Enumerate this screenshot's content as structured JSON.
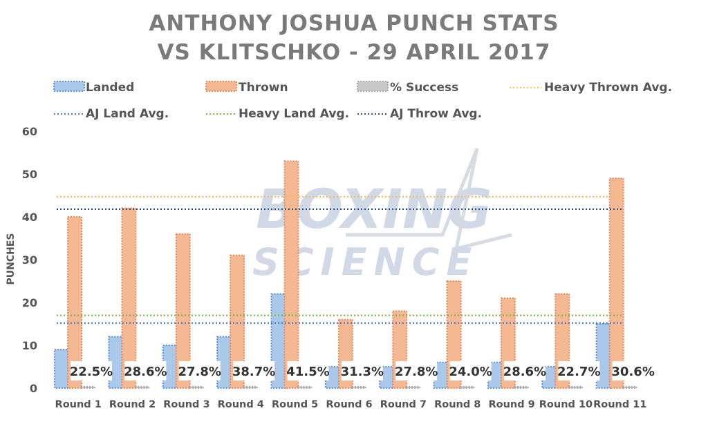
{
  "chart_data": {
    "type": "bar",
    "title_lines": [
      "ANTHONY JOSHUA PUNCH STATS",
      "VS KLITSCHKO - 29 APRIL 2017"
    ],
    "ylabel": "PUNCHES",
    "ylim": [
      0,
      60
    ],
    "yticks": [
      "0",
      "10",
      "20",
      "30",
      "40",
      "50",
      "60"
    ],
    "grid": false,
    "legend_position": "top",
    "categories": [
      "Round 1",
      "Round 2",
      "Round 3",
      "Round 4",
      "Round 5",
      "Round 6",
      "Round 7",
      "Round 8",
      "Round 9",
      "Round 10",
      "Round 11"
    ],
    "series": [
      {
        "name": "Landed",
        "kind": "bar",
        "color": "#a9c8ea",
        "border": "#5b8fd0",
        "values": [
          9,
          12,
          10,
          12,
          22,
          5,
          5,
          6,
          6,
          5,
          15
        ]
      },
      {
        "name": "Thrown",
        "kind": "bar",
        "color": "#f4b893",
        "border": "#e8875a",
        "values": [
          40,
          42,
          36,
          31,
          53,
          16,
          18,
          25,
          21,
          22,
          49
        ]
      },
      {
        "name": "% Success",
        "kind": "bar",
        "color": "#c8c8c8",
        "border": "#a8a8a8",
        "values": [
          0.225,
          0.286,
          0.278,
          0.387,
          0.415,
          0.313,
          0.278,
          0.24,
          0.286,
          0.227,
          0.306
        ],
        "labels": [
          "22.5%",
          "28.6%",
          "27.8%",
          "38.7%",
          "41.5%",
          "31.3%",
          "27.8%",
          "24.0%",
          "28.6%",
          "22.7%",
          "30.6%"
        ]
      }
    ],
    "reference_lines": [
      {
        "name": "Heavy Thrown Avg.",
        "value": 44.7,
        "color": "#f2c14e"
      },
      {
        "name": "AJ Land Avg.",
        "value": 15.2,
        "color": "#4a78c2"
      },
      {
        "name": "Heavy Land Avg.",
        "value": 17,
        "color": "#7cb342"
      },
      {
        "name": "AJ Throw Avg.",
        "value": 41.8,
        "color": "#2f4f7f"
      }
    ]
  },
  "watermark": {
    "line1": "BOXING",
    "line2": "SCIENCE"
  }
}
